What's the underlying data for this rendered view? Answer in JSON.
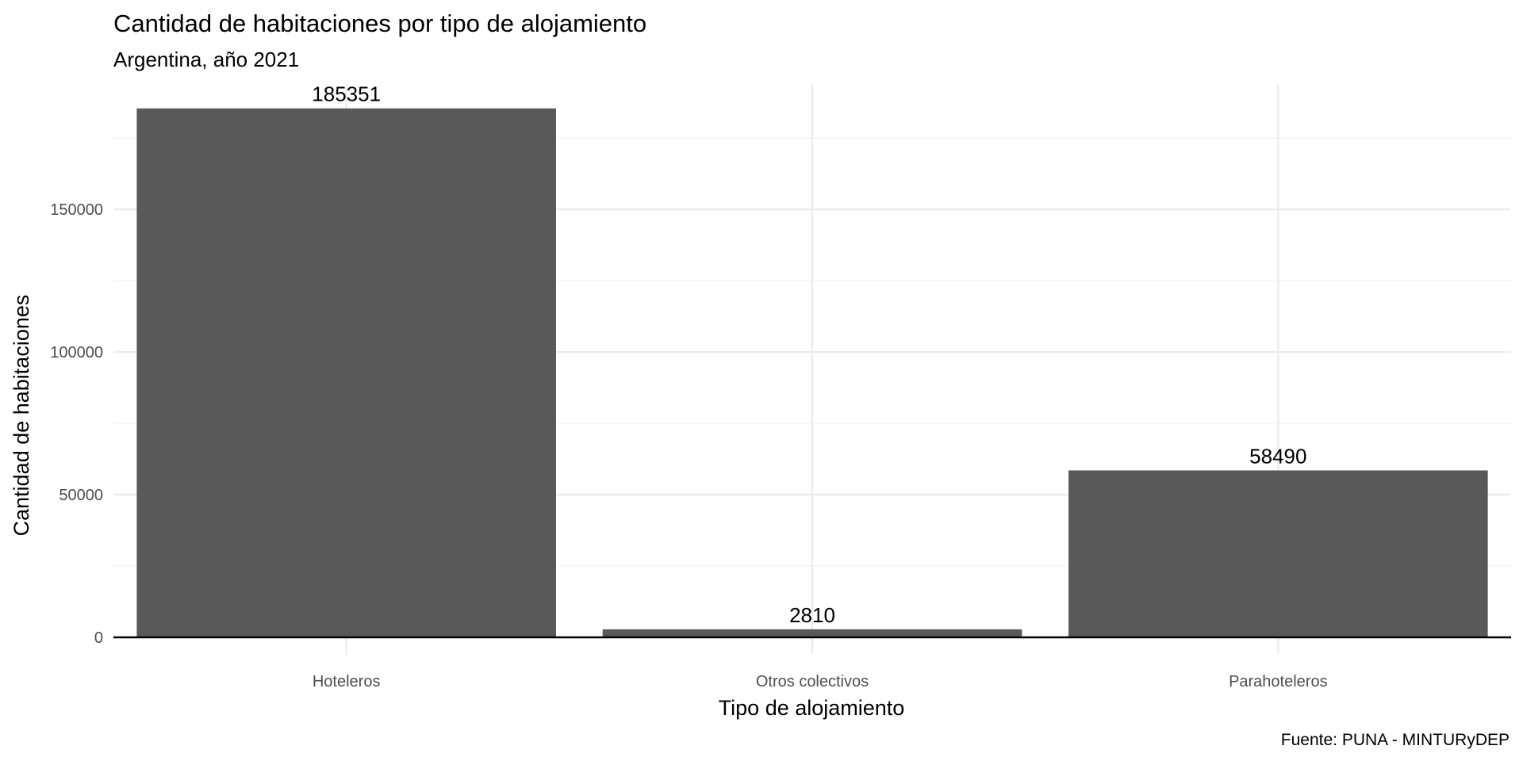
{
  "chart_data": {
    "type": "bar",
    "title": "Cantidad de habitaciones por tipo de alojamiento",
    "subtitle": "Argentina, año 2021",
    "xlabel": "Tipo de alojamiento",
    "ylabel": "Cantidad de habitaciones",
    "caption": "Fuente: PUNA - MINTURyDEP",
    "categories": [
      "Hoteleros",
      "Otros colectivos",
      "Parahoteleros"
    ],
    "values": [
      185351,
      2810,
      58490
    ],
    "data_labels": [
      "185351",
      "2810",
      "58490"
    ],
    "ylim": [
      0,
      195000
    ],
    "yticks": [
      0,
      50000,
      100000,
      150000
    ],
    "ytick_labels": [
      "0",
      "50000",
      "100000",
      "150000"
    ],
    "grid": true,
    "legend": "none",
    "bar_color": "#595959"
  }
}
